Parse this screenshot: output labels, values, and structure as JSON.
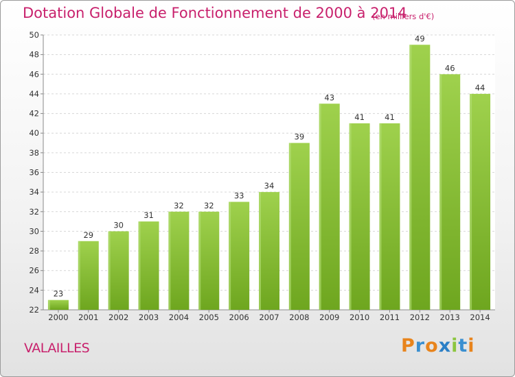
{
  "header": {
    "title": "Dotation Globale de Fonctionnement de 2000 à 2014",
    "subtitle": "(en milliers d'€)"
  },
  "footer": {
    "commune": "VALAILLES",
    "logo_text": "Proxiti",
    "logo_colors": [
      "#e8841c",
      "#3a8fd0",
      "#e8841c",
      "#2b7fc6",
      "#8cc63f",
      "#3a8fd0",
      "#e8841c"
    ]
  },
  "chart_data": {
    "type": "bar",
    "title": "Dotation Globale de Fonctionnement de 2000 à 2014",
    "subtitle": "(en milliers d'€)",
    "categories": [
      "2000",
      "2001",
      "2002",
      "2003",
      "2004",
      "2005",
      "2006",
      "2007",
      "2008",
      "2009",
      "2010",
      "2011",
      "2012",
      "2013",
      "2014"
    ],
    "values": [
      23,
      29,
      30,
      31,
      32,
      32,
      33,
      34,
      39,
      43,
      41,
      41,
      49,
      46,
      44
    ],
    "data_labels": [
      "23",
      "29",
      "30",
      "31",
      "32",
      "32",
      "33",
      "34",
      "39",
      "43",
      "41",
      "41",
      "49",
      "46",
      "44"
    ],
    "xlabel": "",
    "ylabel": "",
    "ylim": [
      22,
      50
    ],
    "yticks": [
      22,
      24,
      26,
      28,
      30,
      32,
      34,
      36,
      38,
      40,
      42,
      44,
      46,
      48,
      50
    ],
    "grid": true,
    "bar_color": "#8cc63f"
  }
}
